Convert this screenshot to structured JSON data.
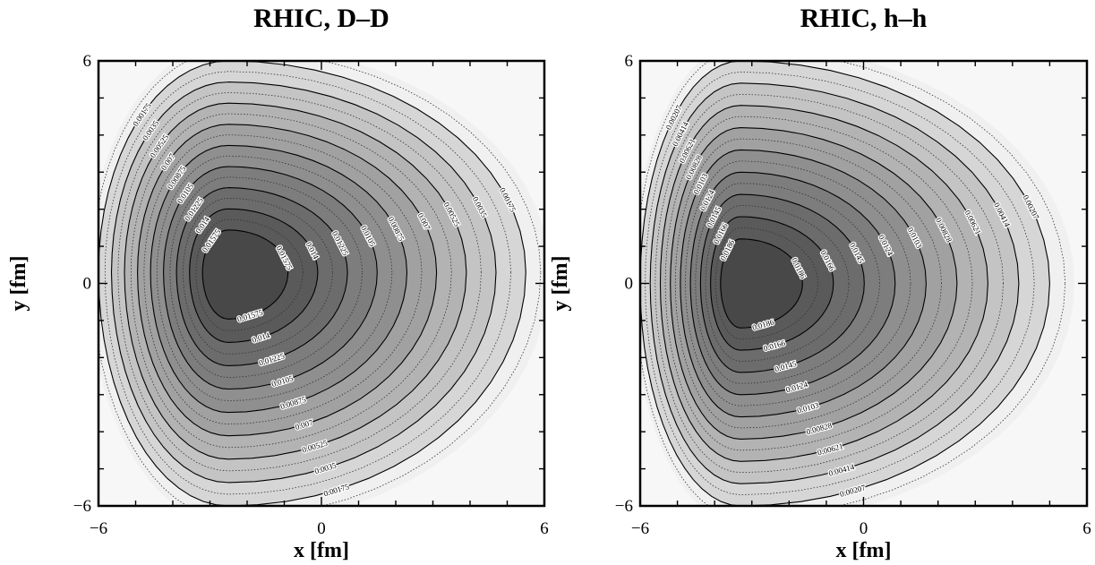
{
  "chart_data": [
    {
      "type": "contour",
      "title": "RHIC, D–D",
      "xlabel": "x [fm]",
      "ylabel": "y [fm]",
      "xlim": [
        -6,
        6
      ],
      "ylim": [
        -6,
        6
      ],
      "x_tick_labels": [
        "−6",
        "0",
        "6"
      ],
      "y_tick_labels": [
        "6",
        "0",
        "−6"
      ],
      "center": [
        -2.5,
        0.3
      ],
      "extent": [
        [
          -6,
          5.5
        ],
        [
          -6,
          6
        ]
      ],
      "levels": [
        0.00175,
        0.0035,
        0.00525,
        0.007,
        0.00875,
        0.0105,
        0.01225,
        0.014,
        0.01575
      ],
      "level_labels": [
        "0.00175",
        "0.0035",
        "0.00525",
        "0.007",
        "0.00875",
        "0.0105",
        "0.01225",
        "0.014",
        "0.01575"
      ]
    },
    {
      "type": "contour",
      "title": "RHIC, h–h",
      "xlabel": "x [fm]",
      "ylabel": "y [fm]",
      "xlim": [
        -6,
        6
      ],
      "ylim": [
        -6,
        6
      ],
      "x_tick_labels": [
        "−6",
        "0",
        "6"
      ],
      "y_tick_labels": [
        "6",
        "0",
        "−6"
      ],
      "center": [
        -3.3,
        0.0
      ],
      "extent": [
        [
          -6,
          5.0
        ],
        [
          -6,
          6
        ]
      ],
      "levels": [
        0.00207,
        0.00414,
        0.00621,
        0.00828,
        0.0103,
        0.0124,
        0.0145,
        0.0166,
        0.0186
      ],
      "level_labels": [
        "0.00207",
        "0.00414",
        "0.00621",
        "0.00828",
        "0.0103",
        "0.0124",
        "0.0145",
        "0.0166",
        "0.0186"
      ]
    }
  ]
}
